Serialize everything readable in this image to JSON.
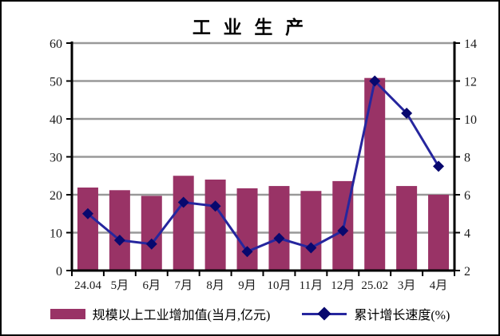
{
  "title": "工 业 生 产",
  "chart_data": {
    "type": "bar",
    "subtype": "bar+line dual axis",
    "title": "工 业 生 产",
    "categories": [
      "24.04",
      "5月",
      "6月",
      "7月",
      "8月",
      "9月",
      "10月",
      "11月",
      "12月",
      "25.02",
      "3月",
      "4月"
    ],
    "series": [
      {
        "name": "规模以上工业增加值(当月,亿元)",
        "type": "bar",
        "axis": "left",
        "color": "#993366",
        "values": [
          21.9,
          21.2,
          19.7,
          25.0,
          24.0,
          21.7,
          22.3,
          21.0,
          23.6,
          50.8,
          22.3,
          20.0
        ]
      },
      {
        "name": "累计增长速度(%)",
        "type": "line",
        "axis": "right",
        "color": "#26269e",
        "marker": "diamond",
        "marker_color": "#08086e",
        "values": [
          5.0,
          3.6,
          3.4,
          5.6,
          5.4,
          3.0,
          3.7,
          3.2,
          4.1,
          12.0,
          10.3,
          7.5
        ]
      }
    ],
    "left_axis": {
      "min": 0,
      "max": 60,
      "step": 10,
      "ticks": [
        0,
        10,
        20,
        30,
        40,
        50,
        60
      ]
    },
    "right_axis": {
      "min": 2,
      "max": 14,
      "step": 2,
      "ticks": [
        2,
        4,
        6,
        8,
        10,
        12,
        14
      ]
    },
    "grid": "horizontal solid gray",
    "grid_color": "#999999",
    "axis_color": "#000000",
    "legend_position": "bottom"
  }
}
